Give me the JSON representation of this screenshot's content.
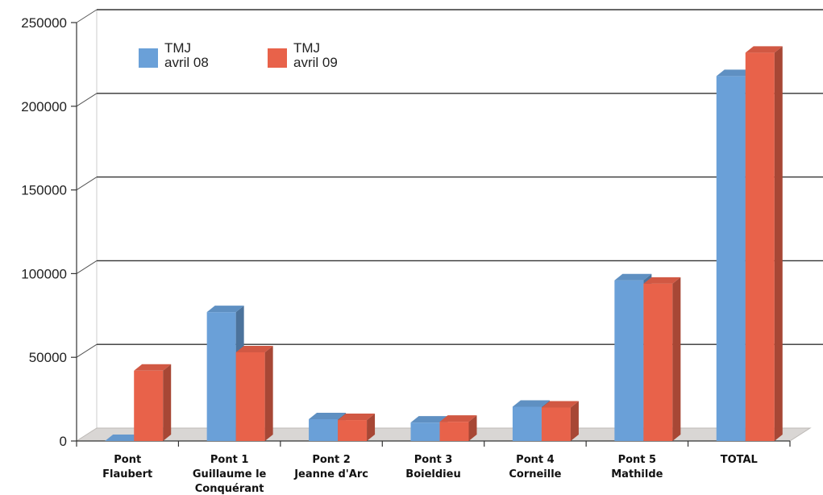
{
  "chart_data": {
    "type": "bar",
    "title": "",
    "xlabel": "",
    "ylabel": "",
    "ylim": [
      0,
      250000
    ],
    "yticks": [
      0,
      50000,
      100000,
      150000,
      200000,
      250000
    ],
    "grid": true,
    "legend_position": "top-left",
    "categories": [
      [
        "Pont",
        "Flaubert"
      ],
      [
        "Pont 1",
        "Guillaume le",
        "Conquérant"
      ],
      [
        "Pont 2",
        "Jeanne  d'Arc"
      ],
      [
        "Pont 3",
        "Boieldieu"
      ],
      [
        "Pont 4",
        "Corneille"
      ],
      [
        "Pont 5",
        "Mathilde"
      ],
      [
        "TOTAL"
      ]
    ],
    "series": [
      {
        "name": "TMJ avril 08",
        "legend_lines": [
          "TMJ",
          "avril 08"
        ],
        "color": "#6aa0d8",
        "values": [
          0,
          77000,
          13000,
          11000,
          20500,
          96000,
          218000
        ]
      },
      {
        "name": "TMJ avril 09",
        "legend_lines": [
          "TMJ",
          "avril 09"
        ],
        "color": "#e8624a",
        "values": [
          42000,
          53000,
          12500,
          11500,
          20000,
          94000,
          232000
        ]
      }
    ]
  }
}
